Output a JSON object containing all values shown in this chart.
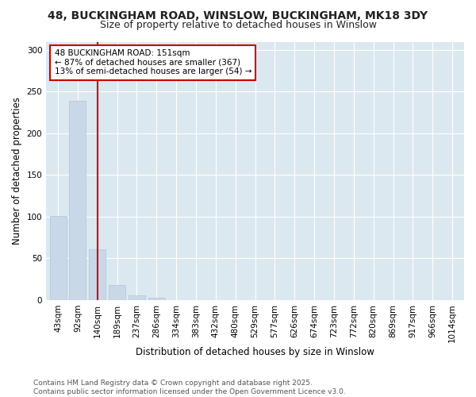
{
  "title1": "48, BUCKINGHAM ROAD, WINSLOW, BUCKINGHAM, MK18 3DY",
  "title2": "Size of property relative to detached houses in Winslow",
  "xlabel": "Distribution of detached houses by size in Winslow",
  "ylabel": "Number of detached properties",
  "categories": [
    "43sqm",
    "92sqm",
    "140sqm",
    "189sqm",
    "237sqm",
    "286sqm",
    "334sqm",
    "383sqm",
    "432sqm",
    "480sqm",
    "529sqm",
    "577sqm",
    "626sqm",
    "674sqm",
    "723sqm",
    "772sqm",
    "820sqm",
    "869sqm",
    "917sqm",
    "966sqm",
    "1014sqm"
  ],
  "values": [
    101,
    239,
    61,
    18,
    6,
    3,
    0,
    0,
    0,
    0,
    0,
    0,
    0,
    0,
    0,
    0,
    0,
    0,
    0,
    0,
    0
  ],
  "bar_color": "#c8d8e8",
  "bar_edge_color": "#b0c4d8",
  "vline_x": 2,
  "vline_color": "#cc0000",
  "annotation_text": "48 BUCKINGHAM ROAD: 151sqm\n← 87% of detached houses are smaller (367)\n13% of semi-detached houses are larger (54) →",
  "annotation_box_color": "#ffffff",
  "annotation_box_edge": "#cc0000",
  "ylim": [
    0,
    310
  ],
  "yticks": [
    0,
    50,
    100,
    150,
    200,
    250,
    300
  ],
  "plot_bg_color": "#dce8f0",
  "fig_bg_color": "#ffffff",
  "grid_color": "#ffffff",
  "footer1": "Contains HM Land Registry data © Crown copyright and database right 2025.",
  "footer2": "Contains public sector information licensed under the Open Government Licence v3.0.",
  "title_fontsize": 10,
  "subtitle_fontsize": 9,
  "axis_label_fontsize": 8.5,
  "tick_fontsize": 7.5,
  "annotation_fontsize": 7.5,
  "footer_fontsize": 6.5
}
